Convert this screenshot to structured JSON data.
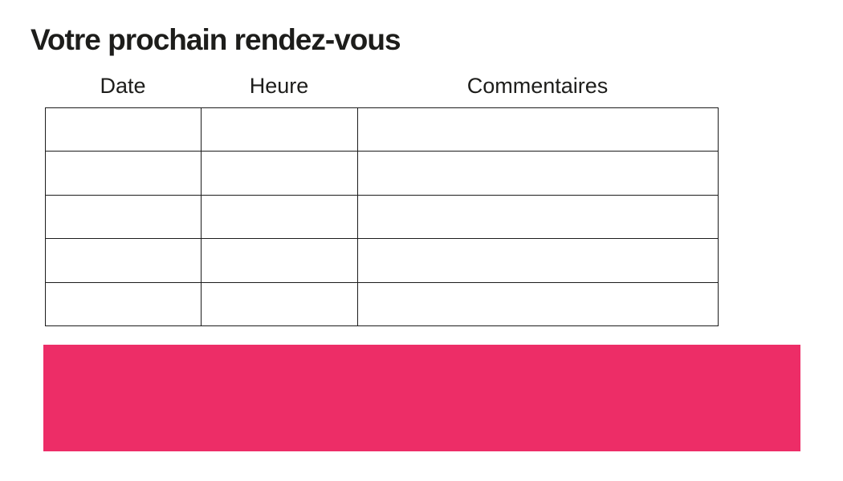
{
  "page": {
    "title": "Votre prochain rendez-vous"
  },
  "table": {
    "column_headers": [
      "Date",
      "Heure",
      "Commentaires"
    ],
    "rows": [
      [
        "",
        "",
        ""
      ],
      [
        "",
        "",
        ""
      ],
      [
        "",
        "",
        ""
      ],
      [
        "",
        "",
        ""
      ],
      [
        "",
        "",
        ""
      ]
    ]
  },
  "banner": {
    "text": ""
  },
  "colors": {
    "text": "#1D1D1B",
    "table_border": "#1C1C1C",
    "background": "#FFFFFF",
    "accent_pink": "#ED2D67"
  }
}
